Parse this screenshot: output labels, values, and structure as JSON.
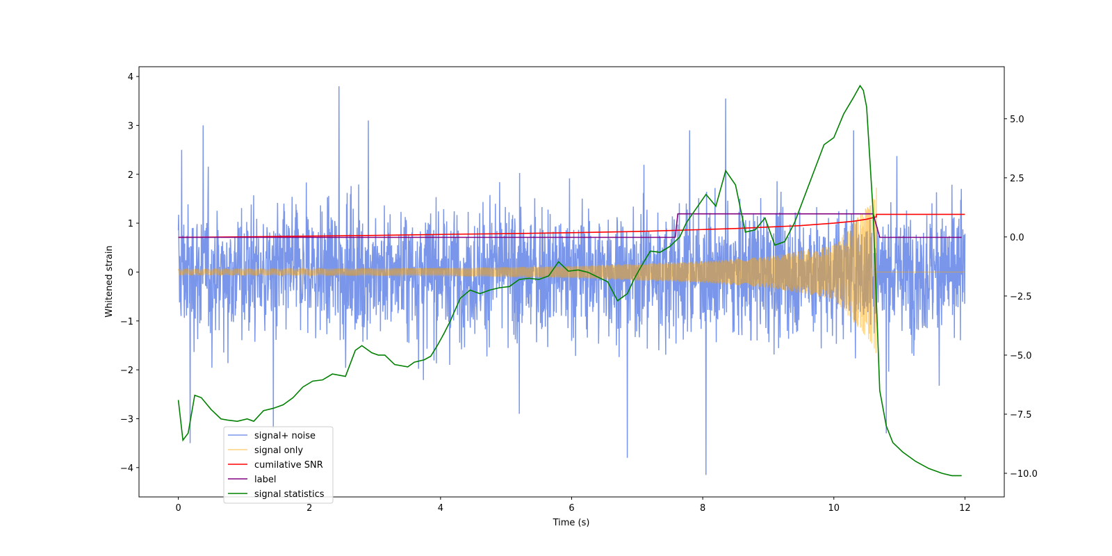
{
  "chart_data": {
    "type": "line",
    "xlabel": "Time (s)",
    "ylabel_left": "Whitened strain",
    "ylabel_right": "",
    "xlim": [
      -0.6,
      12.6
    ],
    "ylim_left": [
      -4.6,
      4.2
    ],
    "ylim_right": [
      -11.0,
      7.2
    ],
    "x_ticks": [
      0,
      2,
      4,
      6,
      8,
      10,
      12
    ],
    "y_left_ticks": [
      -4,
      -3,
      -2,
      -1,
      0,
      1,
      2,
      3,
      4
    ],
    "y_right_ticks": [
      -10.0,
      -7.5,
      -5.0,
      -2.5,
      0.0,
      2.5,
      5.0
    ],
    "y_right_tick_labels": [
      "−10.0",
      "−7.5",
      "−5.0",
      "−2.5",
      "0.0",
      "2.5",
      "5.0"
    ],
    "grid": false,
    "legend_position": "lower-left",
    "series": [
      {
        "name": "signal+ noise",
        "axis": "left",
        "color": "#4169e1",
        "description_values": {
          "x_range": [
            0,
            12
          ],
          "amplitude_typical": 1.0,
          "extremes": [
            -4.15,
            3.8
          ],
          "sample_peaks": [
            {
              "x": 0.05,
              "y": 2.5
            },
            {
              "x": 0.18,
              "y": -3.5
            },
            {
              "x": 0.38,
              "y": 3.0
            },
            {
              "x": 1.45,
              "y": -3.2
            },
            {
              "x": 2.45,
              "y": 3.8
            },
            {
              "x": 2.9,
              "y": 3.1
            },
            {
              "x": 5.2,
              "y": -2.9
            },
            {
              "x": 6.85,
              "y": -3.8
            },
            {
              "x": 7.8,
              "y": 2.9
            },
            {
              "x": 8.05,
              "y": -4.15
            },
            {
              "x": 8.35,
              "y": 3.55
            },
            {
              "x": 10.3,
              "y": 2.9
            },
            {
              "x": 10.8,
              "y": -3.3
            }
          ]
        }
      },
      {
        "name": "signal only",
        "axis": "left",
        "color": "#ffa500",
        "description_values": {
          "x_range": [
            0,
            12
          ],
          "chirp_end_time": 10.65,
          "envelope_points": [
            [
              0,
              0.06
            ],
            [
              4,
              0.08
            ],
            [
              6,
              0.12
            ],
            [
              8,
              0.22
            ],
            [
              9,
              0.32
            ],
            [
              10,
              0.55
            ],
            [
              10.6,
              1.5
            ],
            [
              10.65,
              1.9
            ]
          ],
          "post_merger_value": 0.0
        }
      },
      {
        "name": "cumilative SNR",
        "axis": "left",
        "color": "#ff0000",
        "x": [
          0,
          1,
          2,
          3,
          4,
          5,
          6,
          7,
          7.5,
          8,
          8.5,
          9,
          9.5,
          10,
          10.3,
          10.5,
          10.65,
          10.65,
          12
        ],
        "values": [
          0.71,
          0.72,
          0.735,
          0.75,
          0.77,
          0.785,
          0.805,
          0.83,
          0.85,
          0.87,
          0.89,
          0.92,
          0.95,
          1.0,
          1.04,
          1.08,
          1.13,
          1.18,
          1.18
        ]
      },
      {
        "name": "label",
        "axis": "left",
        "color": "#800080",
        "x": [
          0,
          7.58,
          7.62,
          10.6,
          10.7,
          11.95
        ],
        "values": [
          0.71,
          0.71,
          1.19,
          1.19,
          0.71,
          0.71
        ]
      },
      {
        "name": "signal statistics",
        "axis": "right",
        "color": "#008000",
        "x": [
          0.0,
          0.07,
          0.15,
          0.25,
          0.35,
          0.5,
          0.65,
          0.75,
          0.9,
          1.05,
          1.15,
          1.3,
          1.45,
          1.6,
          1.75,
          1.9,
          2.05,
          2.2,
          2.35,
          2.55,
          2.7,
          2.8,
          2.95,
          3.05,
          3.15,
          3.3,
          3.5,
          3.6,
          3.75,
          3.85,
          3.95,
          4.05,
          4.15,
          4.3,
          4.45,
          4.6,
          4.75,
          4.9,
          5.05,
          5.2,
          5.35,
          5.5,
          5.65,
          5.8,
          5.95,
          6.1,
          6.25,
          6.4,
          6.55,
          6.7,
          6.85,
          6.95,
          7.05,
          7.2,
          7.35,
          7.5,
          7.65,
          7.75,
          7.9,
          8.05,
          8.2,
          8.35,
          8.5,
          8.65,
          8.8,
          8.95,
          9.1,
          9.25,
          9.4,
          9.55,
          9.7,
          9.85,
          10.0,
          10.15,
          10.3,
          10.4,
          10.45,
          10.5,
          10.6,
          10.7,
          10.8,
          10.9,
          11.05,
          11.25,
          11.45,
          11.65,
          11.8,
          11.95
        ],
        "values": [
          -6.9,
          -8.6,
          -8.3,
          -6.7,
          -6.8,
          -7.3,
          -7.7,
          -7.75,
          -7.8,
          -7.7,
          -7.8,
          -7.35,
          -7.25,
          -7.1,
          -6.8,
          -6.35,
          -6.1,
          -6.05,
          -5.8,
          -5.9,
          -4.8,
          -4.6,
          -4.9,
          -5.0,
          -5.0,
          -5.4,
          -5.5,
          -5.3,
          -5.2,
          -5.05,
          -4.6,
          -4.1,
          -3.55,
          -2.6,
          -2.25,
          -2.4,
          -2.25,
          -2.15,
          -2.1,
          -1.8,
          -1.75,
          -1.8,
          -1.65,
          -1.05,
          -1.45,
          -1.4,
          -1.5,
          -1.7,
          -1.9,
          -2.7,
          -2.4,
          -1.8,
          -1.3,
          -0.6,
          -0.65,
          -0.4,
          0.0,
          0.6,
          1.2,
          1.8,
          1.3,
          2.8,
          2.2,
          0.2,
          0.3,
          0.8,
          -0.35,
          -0.2,
          0.6,
          1.7,
          2.8,
          3.9,
          4.2,
          5.2,
          5.9,
          6.4,
          6.2,
          5.5,
          1.0,
          -6.5,
          -8.0,
          -8.7,
          -9.1,
          -9.5,
          -9.8,
          -10.0,
          -10.1,
          -10.1
        ]
      }
    ]
  }
}
